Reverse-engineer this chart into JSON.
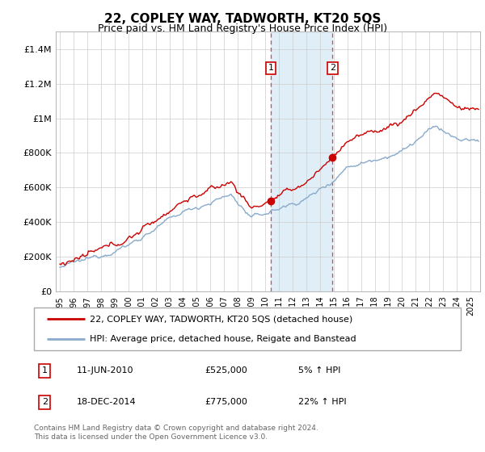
{
  "title": "22, COPLEY WAY, TADWORTH, KT20 5QS",
  "subtitle": "Price paid vs. HM Land Registry's House Price Index (HPI)",
  "yticks": [
    0,
    200000,
    400000,
    600000,
    800000,
    1000000,
    1200000,
    1400000
  ],
  "ylim": [
    0,
    1500000
  ],
  "legend_line1": "22, COPLEY WAY, TADWORTH, KT20 5QS (detached house)",
  "legend_line2": "HPI: Average price, detached house, Reigate and Banstead",
  "event1_label": "1",
  "event1_date": "11-JUN-2010",
  "event1_price": "£525,000",
  "event1_pct": "5% ↑ HPI",
  "event1_year": 2010.45,
  "event2_label": "2",
  "event2_date": "18-DEC-2014",
  "event2_price": "£775,000",
  "event2_pct": "22% ↑ HPI",
  "event2_year": 2014.96,
  "line_color_property": "#cc0000",
  "line_color_hpi": "#88aacc",
  "shade_color": "#e0eef8",
  "footer": "Contains HM Land Registry data © Crown copyright and database right 2024.\nThis data is licensed under the Open Government Licence v3.0.",
  "xmin": 1994.7,
  "xmax": 2025.7
}
